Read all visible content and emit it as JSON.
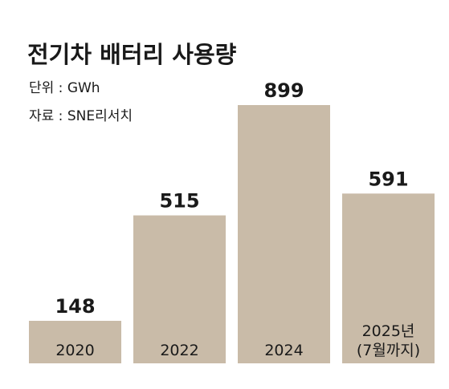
{
  "chart_data": {
    "type": "bar",
    "title": "전기차 배터리 사용량",
    "notes": [
      "단위 : GWh",
      "자료 : SNE리서치"
    ],
    "categories": [
      [
        "2020"
      ],
      [
        "2022"
      ],
      [
        "2024"
      ],
      [
        "2025년",
        "(7월까지)"
      ]
    ],
    "values": [
      148,
      515,
      899,
      591
    ],
    "value_labels": [
      "148",
      "515",
      "899",
      "591"
    ],
    "bar_color": "#c9bba8",
    "text_color": "#1a1a1a",
    "ylim": [
      0,
      899
    ],
    "grid": false,
    "legend": "none"
  }
}
